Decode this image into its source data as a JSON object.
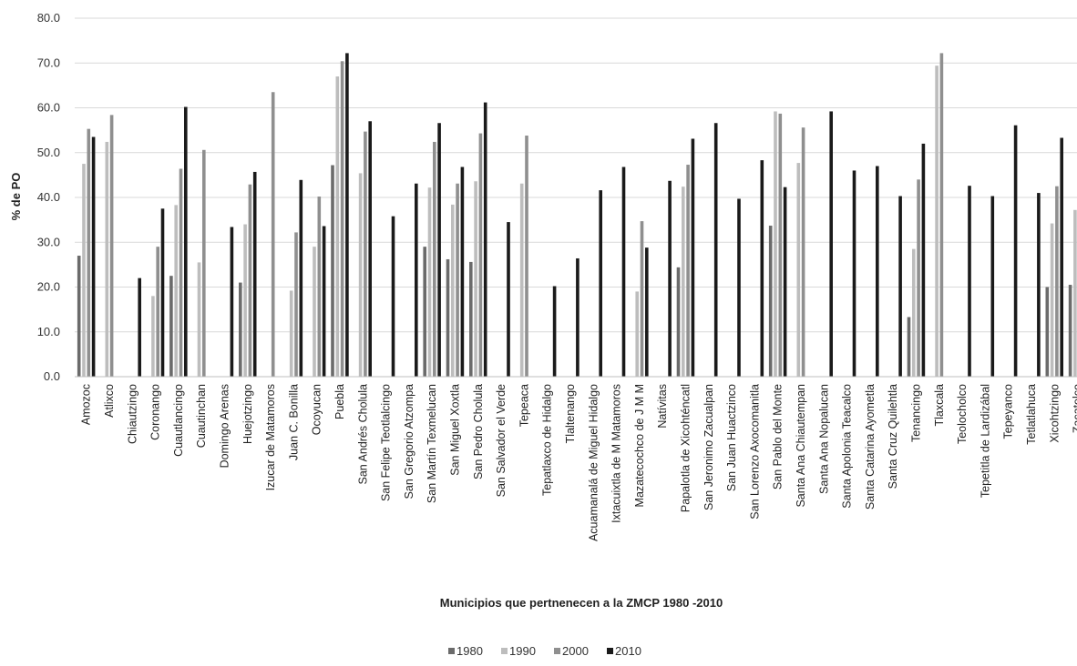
{
  "chart_data": {
    "type": "bar",
    "xlabel": "Municipios que pertnenecen a la ZMCP 1980 -2010",
    "ylabel": "% de PO",
    "ylim": [
      0,
      80
    ],
    "yticks": [
      "0.0",
      "10.0",
      "20.0",
      "30.0",
      "40.0",
      "50.0",
      "60.0",
      "70.0",
      "80.0"
    ],
    "grid": true,
    "legend_position": "bottom",
    "categories": [
      "Amozoc",
      "Atlixco",
      "Chiautzingo",
      "Coronango",
      "Cuautlancingo",
      "Cuautinchan",
      "Domingo Arenas",
      "Huejotzingo",
      "Izucar de Matamoros",
      "Juan C. Bonilla",
      "Ocoyucan",
      "Puebla",
      "San Andrés Cholula",
      "San Felipe Teotlalcingo",
      "San Gregorio Atzompa",
      "San Martín Texmelucan",
      "San Miguel Xoxtla",
      "San Pedro Cholula",
      "San Salvador el Verde",
      "Tepeaca",
      "Tepatlaxco de Hidalgo",
      "Tlaltenango",
      "Acuamanalá de Miguel Hidalgo",
      "Ixtacuixtla de M Matamoros",
      "Mazatecochco de J M M",
      "Natívitas",
      "Papalotla de Xicohténcatl",
      "San Jeronimo Zacualpan",
      "San Juan Huactzinco",
      "San Lorenzo Axocomanitla",
      "San Pablo del Monte",
      "Santa Ana Chiautempan",
      "Santa Ana Nopalucan",
      "Santa Apolonia Teacalco",
      "Santa Catarina Ayometla",
      "Santa Cruz Quilehtla",
      "Tenancingo",
      "Tlaxcala",
      "Teolocholco",
      "Tepetitla de Lardizábal",
      "Tepeyanco",
      "Tetlatlahuca",
      "Xicohtzingo",
      "Zacatelco"
    ],
    "series": [
      {
        "name": "1980",
        "color": "#6b6b6b",
        "values": [
          27.0,
          null,
          null,
          null,
          22.5,
          null,
          null,
          21.0,
          null,
          null,
          null,
          47.2,
          null,
          null,
          null,
          29.0,
          26.2,
          25.6,
          null,
          null,
          null,
          null,
          null,
          null,
          null,
          null,
          24.4,
          null,
          null,
          null,
          33.7,
          null,
          null,
          null,
          null,
          null,
          13.3,
          null,
          null,
          null,
          null,
          null,
          20.0,
          20.5
        ]
      },
      {
        "name": "1990",
        "color": "#bdbdbd",
        "values": [
          47.5,
          52.4,
          null,
          18.0,
          38.3,
          25.5,
          null,
          34.0,
          null,
          19.2,
          29.0,
          67.0,
          45.4,
          null,
          null,
          42.2,
          38.4,
          43.6,
          null,
          43.1,
          null,
          null,
          null,
          null,
          19.0,
          null,
          42.4,
          null,
          null,
          null,
          59.2,
          47.7,
          null,
          null,
          null,
          null,
          28.5,
          69.4,
          null,
          null,
          null,
          null,
          34.2,
          37.2
        ]
      },
      {
        "name": "2000",
        "color": "#8f8f8f",
        "values": [
          55.3,
          58.4,
          null,
          29.0,
          46.4,
          50.6,
          null,
          42.9,
          63.5,
          32.2,
          40.2,
          70.4,
          54.7,
          null,
          null,
          52.4,
          43.1,
          54.3,
          null,
          53.8,
          null,
          null,
          null,
          null,
          34.7,
          null,
          47.3,
          null,
          null,
          null,
          58.7,
          55.6,
          null,
          null,
          null,
          null,
          44.0,
          72.2,
          null,
          null,
          null,
          null,
          42.5,
          null
        ]
      },
      {
        "name": "2010",
        "color": "#1a1a1a",
        "values": [
          53.5,
          null,
          22.0,
          37.5,
          60.2,
          null,
          33.4,
          45.7,
          null,
          43.9,
          33.6,
          72.2,
          57.0,
          35.8,
          43.1,
          56.6,
          46.8,
          61.2,
          34.5,
          null,
          20.2,
          26.4,
          41.6,
          46.8,
          28.8,
          43.7,
          53.1,
          56.6,
          39.7,
          48.3,
          42.3,
          null,
          59.2,
          46.0,
          47.0,
          40.3,
          52.0,
          null,
          42.6,
          40.3,
          56.1,
          41.0,
          53.3,
          null
        ]
      }
    ]
  }
}
